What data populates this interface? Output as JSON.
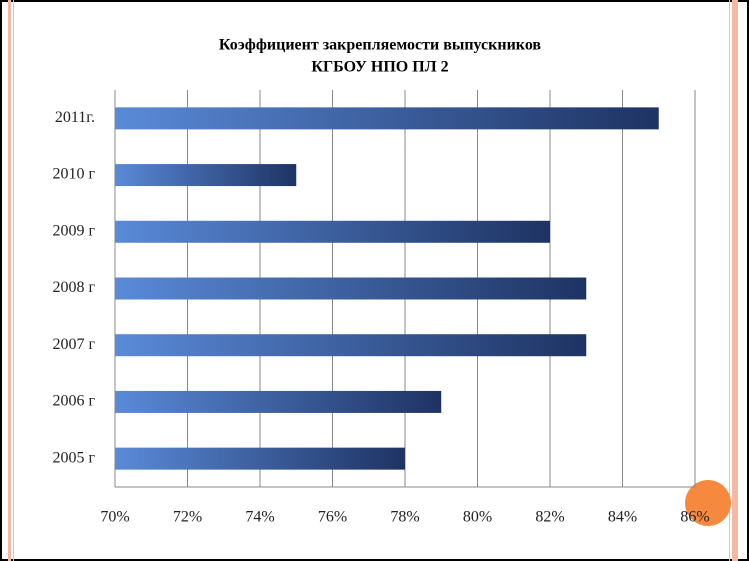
{
  "chart_data": {
    "type": "bar",
    "orientation": "horizontal",
    "title": [
      "Коэффициент закрепляемости выпускников",
      "КГБОУ НПО ПЛ 2"
    ],
    "categories": [
      "2011г.",
      "2010 г",
      "2009 г",
      "2008 г",
      "2007 г",
      "2006 г",
      "2005 г"
    ],
    "values": [
      85,
      75,
      82,
      83,
      83,
      79,
      78
    ],
    "color": [
      "#5a8ad8",
      "#1e3363"
    ],
    "xlim": [
      70,
      86
    ],
    "xticks": [
      {
        "value": 70,
        "label": "70%"
      },
      {
        "value": 72,
        "label": "72%"
      },
      {
        "value": 74,
        "label": "74%"
      },
      {
        "value": 76,
        "label": "76%"
      },
      {
        "value": 78,
        "label": "78%"
      },
      {
        "value": 80,
        "label": "80%"
      },
      {
        "value": 82,
        "label": "82%"
      },
      {
        "value": 84,
        "label": "84%"
      },
      {
        "value": 86,
        "label": "86%"
      }
    ],
    "grid": true
  }
}
